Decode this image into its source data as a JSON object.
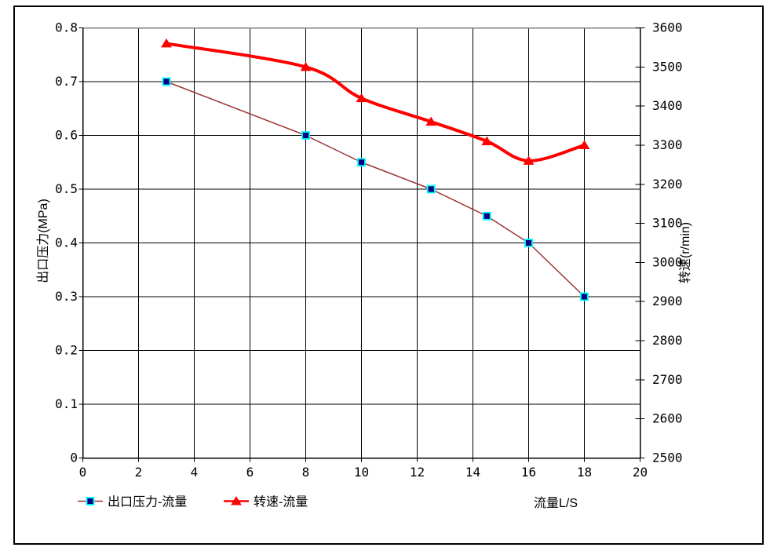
{
  "window": {
    "background": "#FFFFFF",
    "frame_color": "#000000"
  },
  "chart_data": {
    "type": "line",
    "x": [
      3,
      8,
      10,
      12.5,
      14.5,
      16,
      18
    ],
    "series": [
      {
        "name": "出口压力-流量",
        "axis": "left",
        "values": [
          0.7,
          0.6,
          0.55,
          0.5,
          0.45,
          0.4,
          0.3
        ],
        "line_color": "#993333",
        "line_width": 1.5,
        "smooth": false,
        "marker": "square",
        "marker_fill": "#000080",
        "marker_stroke": "#00FFFF"
      },
      {
        "name": "转速-流量",
        "axis": "right",
        "values": [
          3560,
          3500,
          3420,
          3360,
          3310,
          3260,
          3300
        ],
        "line_color": "#FF0000",
        "line_width": 4,
        "smooth": true,
        "marker": "triangle",
        "marker_fill": "#FF0000",
        "marker_stroke": "#FF0000"
      }
    ],
    "x_axis": {
      "label": "流量L/S",
      "min": 0,
      "max": 20,
      "tick_step": 2,
      "tick_labels": [
        "0",
        "2",
        "4",
        "6",
        "8",
        "10",
        "12",
        "14",
        "16",
        "18",
        "20"
      ]
    },
    "y_left": {
      "label": "出口压力(MPa)",
      "min": 0,
      "max": 0.8,
      "tick_step": 0.1,
      "tick_labels": [
        "0",
        "0.1",
        "0.2",
        "0.3",
        "0.4",
        "0.5",
        "0.6",
        "0.7",
        "0.8"
      ]
    },
    "y_right": {
      "label": "转速(r/min)",
      "min": 2500,
      "max": 3600,
      "tick_step": 100,
      "tick_labels": [
        "2500",
        "2600",
        "2700",
        "2800",
        "2900",
        "3000",
        "3100",
        "3200",
        "3300",
        "3400",
        "3500",
        "3600"
      ]
    },
    "grid": {
      "horizontal": true,
      "vertical": true,
      "color": "#000000"
    },
    "plot_border_top_color": "#808080",
    "axis_color": "#000000",
    "text_color": "#000000",
    "legend_position": "bottom"
  }
}
